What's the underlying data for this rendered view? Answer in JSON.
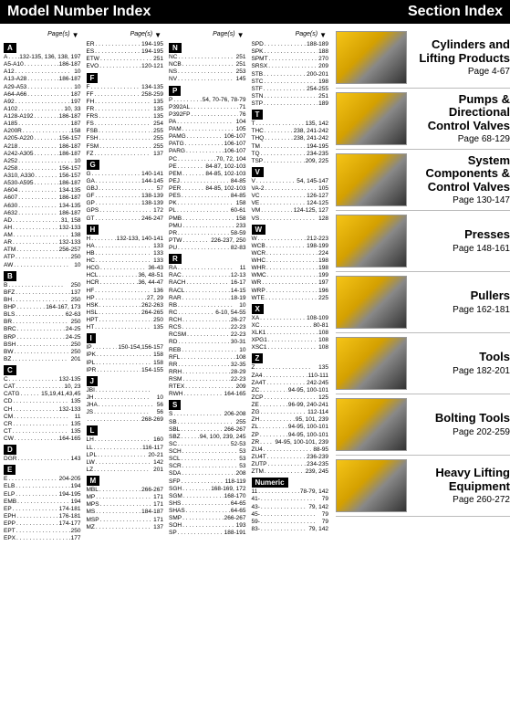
{
  "header": {
    "left": "Model Number Index",
    "right": "Section Index"
  },
  "pagesLabel": "Page(s)",
  "columns": [
    [
      {
        "letter": "A"
      },
      {
        "m": "A",
        "p": ".132-135, 136, 138, 197"
      },
      {
        "m": "A5-A10",
        "p": "186-187"
      },
      {
        "m": "A12",
        "p": "10"
      },
      {
        "m": "A13-A28",
        "p": "186-187"
      },
      {
        "m": "A29-A53",
        "p": "10"
      },
      {
        "m": "A64-A66",
        "p": "187"
      },
      {
        "m": "A92",
        "p": "197"
      },
      {
        "m": "A102",
        "p": "10, 33"
      },
      {
        "m": "A128-A192",
        "p": "186-187"
      },
      {
        "m": "A185",
        "p": "187"
      },
      {
        "m": "A200R",
        "p": "158"
      },
      {
        "m": "A205-A220",
        "p": "156-157"
      },
      {
        "m": "A218",
        "p": "186-187"
      },
      {
        "m": "A242-A305",
        "p": "186-187"
      },
      {
        "m": "A252",
        "p": "10"
      },
      {
        "m": "A258",
        "p": "156-157"
      },
      {
        "m": "A310, A330",
        "p": "156-157"
      },
      {
        "m": "A530-A595",
        "p": "186-187"
      },
      {
        "m": "A604",
        "p": "134-135"
      },
      {
        "m": "A607",
        "p": "186-187"
      },
      {
        "m": "A630",
        "p": "134-135"
      },
      {
        "m": "A632",
        "p": "186-187"
      },
      {
        "m": "AD",
        "p": "31, 158"
      },
      {
        "m": "AH",
        "p": "132-133"
      },
      {
        "m": "AM",
        "p": "138"
      },
      {
        "m": "AR",
        "p": "132-133"
      },
      {
        "m": "ATM",
        "p": "256-257"
      },
      {
        "m": "ATP",
        "p": "250"
      },
      {
        "m": "AW",
        "p": "10"
      },
      {
        "letter": "B"
      },
      {
        "m": "B",
        "p": "250"
      },
      {
        "m": "BFZ",
        "p": "137"
      },
      {
        "m": "BH",
        "p": "250"
      },
      {
        "m": "BHP",
        "p": "164-167, 173"
      },
      {
        "m": "BLS",
        "p": "62-63"
      },
      {
        "m": "BR",
        "p": "250"
      },
      {
        "m": "BRC",
        "p": "24-25"
      },
      {
        "m": "BRP",
        "p": "24-25"
      },
      {
        "m": "BSH",
        "p": "250"
      },
      {
        "m": "BW",
        "p": "250"
      },
      {
        "m": "BZ",
        "p": "201"
      },
      {
        "letter": "C"
      },
      {
        "m": "C",
        "p": "132-135"
      },
      {
        "m": "CAT",
        "p": "10, 23"
      },
      {
        "m": "CATG",
        "p": "15,19,41,43,45"
      },
      {
        "m": "CD",
        "p": "135"
      },
      {
        "m": "CH",
        "p": "132-133"
      },
      {
        "m": "CM",
        "p": "11"
      },
      {
        "m": "CR",
        "p": "135"
      },
      {
        "m": "CT",
        "p": "135"
      },
      {
        "m": "CW",
        "p": "164-165"
      },
      {
        "letter": "D"
      },
      {
        "m": "DGR",
        "p": "143"
      },
      {
        "letter": "E"
      },
      {
        "m": "E",
        "p": "204-205"
      },
      {
        "m": "ELB",
        "p": "194"
      },
      {
        "m": "ELP",
        "p": "194-195"
      },
      {
        "m": "EMB",
        "p": "194"
      },
      {
        "m": "EP",
        "p": "174-181"
      },
      {
        "m": "EPH",
        "p": "176-181"
      },
      {
        "m": "EPP",
        "p": "174-177"
      },
      {
        "m": "EPT",
        "p": "250"
      },
      {
        "m": "EPX",
        "p": "177"
      }
    ],
    [
      {
        "m": "ER",
        "p": "194-195"
      },
      {
        "m": "ES",
        "p": "194-195"
      },
      {
        "m": "ETW",
        "p": "251"
      },
      {
        "m": "EVO",
        "p": "120-121"
      },
      {
        "letter": "F"
      },
      {
        "m": "F",
        "p": "134-135"
      },
      {
        "m": "FF",
        "p": "258-259"
      },
      {
        "m": "FH",
        "p": "135"
      },
      {
        "m": "FR",
        "p": "135"
      },
      {
        "m": "FRS",
        "p": "135"
      },
      {
        "m": "FS",
        "p": "254"
      },
      {
        "m": "FSB",
        "p": "255"
      },
      {
        "m": "FSH",
        "p": "255"
      },
      {
        "m": "FSM",
        "p": "255"
      },
      {
        "m": "FZ",
        "p": "137"
      },
      {
        "letter": "G"
      },
      {
        "m": "G",
        "p": "140-141"
      },
      {
        "m": "GA",
        "p": "144-145"
      },
      {
        "m": "GBJ",
        "p": "57"
      },
      {
        "m": "GF",
        "p": "138-139"
      },
      {
        "m": "GP",
        "p": "138-139"
      },
      {
        "m": "GPS",
        "p": "172"
      },
      {
        "m": "GT",
        "p": "246-247"
      },
      {
        "letter": "H"
      },
      {
        "m": "H",
        "p": "132-133, 140-141"
      },
      {
        "m": "HA",
        "p": "133"
      },
      {
        "m": "HB",
        "p": "133"
      },
      {
        "m": "HC",
        "p": "133"
      },
      {
        "m": "HCG",
        "p": "36-43"
      },
      {
        "m": "HCL",
        "p": "36, 48-51"
      },
      {
        "m": "HCR",
        "p": "36, 44-47"
      },
      {
        "m": "HF",
        "p": "136"
      },
      {
        "m": "HP",
        "p": "27, 29"
      },
      {
        "m": "HSK",
        "p": "262-263"
      },
      {
        "m": "HSL",
        "p": "264-265"
      },
      {
        "m": "HPT",
        "p": "250"
      },
      {
        "m": "HT",
        "p": "135"
      },
      {
        "letter": "I"
      },
      {
        "m": "IP",
        "p": "150-154,156-157"
      },
      {
        "m": "IPK",
        "p": "158"
      },
      {
        "m": "IPL",
        "p": "158"
      },
      {
        "m": "IPR",
        "p": "154-155"
      },
      {
        "letter": "J"
      },
      {
        "m": "JBI",
        "p": ""
      },
      {
        "m": "JH",
        "p": "10"
      },
      {
        "m": "JHA",
        "p": "56"
      },
      {
        "m": "JS",
        "p": "56"
      },
      {
        "m": "",
        "p": "268-269"
      },
      {
        "letter": "L"
      },
      {
        "m": "LH",
        "p": "160"
      },
      {
        "m": "LL",
        "p": "116-117"
      },
      {
        "m": "LPL",
        "p": "20-21"
      },
      {
        "m": "LW",
        "p": "142"
      },
      {
        "m": "LZ",
        "p": "201"
      },
      {
        "letter": "M"
      },
      {
        "m": "MBL",
        "p": "266-267"
      },
      {
        "m": "MP",
        "p": "171"
      },
      {
        "m": "MPS",
        "p": "171"
      },
      {
        "m": "MS",
        "p": "184-187"
      },
      {
        "m": "MSP",
        "p": "171"
      },
      {
        "m": "MZ",
        "p": "137"
      }
    ],
    [
      {
        "letter": "N"
      },
      {
        "m": "NC",
        "p": "251"
      },
      {
        "m": "NCB",
        "p": "251"
      },
      {
        "m": "NS",
        "p": "253"
      },
      {
        "m": "NV",
        "p": "145"
      },
      {
        "letter": "P"
      },
      {
        "m": "P",
        "p": "54, 70-76, 78-79"
      },
      {
        "m": "P392AL",
        "p": "71"
      },
      {
        "m": "P392FP",
        "p": "76"
      },
      {
        "m": "PA",
        "p": "104"
      },
      {
        "m": "PAM",
        "p": "105"
      },
      {
        "m": "PAMG",
        "p": "106-107"
      },
      {
        "m": "PATG",
        "p": "106-107"
      },
      {
        "m": "PARG",
        "p": "106-107"
      },
      {
        "m": "PC",
        "p": "70, 72, 104"
      },
      {
        "m": "PE",
        "p": "84-87, 102-103"
      },
      {
        "m": "PEM",
        "p": "84-85, 102-103"
      },
      {
        "m": "PEJ",
        "p": "84-85"
      },
      {
        "m": "PER",
        "p": "84-85, 102-103"
      },
      {
        "m": "PES",
        "p": "84-85"
      },
      {
        "m": "PK",
        "p": "158"
      },
      {
        "m": "PL",
        "p": "60-61"
      },
      {
        "m": "PMB",
        "p": "158"
      },
      {
        "m": "PMU",
        "p": "233"
      },
      {
        "m": "PR",
        "p": "58-59"
      },
      {
        "m": "PTW",
        "p": "226-237, 250"
      },
      {
        "m": "PU",
        "p": "82-83"
      },
      {
        "letter": "R"
      },
      {
        "m": "RA",
        "p": "11"
      },
      {
        "m": "RAC",
        "p": "12-13"
      },
      {
        "m": "RACH",
        "p": "16-17"
      },
      {
        "m": "RACL",
        "p": "14-15"
      },
      {
        "m": "RAR",
        "p": "18-19"
      },
      {
        "m": "RB",
        "p": "10"
      },
      {
        "m": "RC",
        "p": "6-10, 54-55"
      },
      {
        "m": "RCH",
        "p": "26-27"
      },
      {
        "m": "RCS",
        "p": "22-23"
      },
      {
        "m": "RCSM",
        "p": "22-23"
      },
      {
        "m": "RD",
        "p": "30-31"
      },
      {
        "m": "REB",
        "p": "10"
      },
      {
        "m": "RFL",
        "p": "108"
      },
      {
        "m": "RR",
        "p": "32-35"
      },
      {
        "m": "RRH",
        "p": "28-29"
      },
      {
        "m": "RSM",
        "p": "22-23"
      },
      {
        "m": "RTEX",
        "p": "209"
      },
      {
        "m": "RWH",
        "p": "164-165"
      },
      {
        "letter": "S"
      },
      {
        "m": "S",
        "p": "206-208"
      },
      {
        "m": "SB",
        "p": "255"
      },
      {
        "m": "SBL",
        "p": "266-267"
      },
      {
        "m": "SBZ",
        "p": "94, 100, 239, 245"
      },
      {
        "m": "SC",
        "p": "52-53"
      },
      {
        "m": "SCH",
        "p": "53"
      },
      {
        "m": "SCL",
        "p": "53"
      },
      {
        "m": "SCR",
        "p": "53"
      },
      {
        "m": "SDA",
        "p": "208"
      },
      {
        "m": "SFP",
        "p": "118-119"
      },
      {
        "m": "SGH",
        "p": "168-169, 172"
      },
      {
        "m": "SGM",
        "p": "168-170"
      },
      {
        "m": "SHS",
        "p": "64-65"
      },
      {
        "m": "SHAS",
        "p": "64-65"
      },
      {
        "m": "SMP",
        "p": "266-267"
      },
      {
        "m": "SOH",
        "p": "193"
      },
      {
        "m": "SP",
        "p": "188-191"
      }
    ],
    [
      {
        "m": "SPD",
        "p": "188-189"
      },
      {
        "m": "SPK",
        "p": "188"
      },
      {
        "m": "SPMT",
        "p": "270"
      },
      {
        "m": "SRSX",
        "p": "209"
      },
      {
        "m": "STB",
        "p": "200-201"
      },
      {
        "m": "STC",
        "p": "198"
      },
      {
        "m": "STF",
        "p": "254-255"
      },
      {
        "m": "STN",
        "p": "251"
      },
      {
        "m": "STP",
        "p": "189"
      },
      {
        "letter": "T"
      },
      {
        "m": "T",
        "p": "135, 142"
      },
      {
        "m": "THC",
        "p": "238, 241-242"
      },
      {
        "m": "THQ",
        "p": "238, 241-242"
      },
      {
        "m": "TM",
        "p": "194-195"
      },
      {
        "m": "TQ",
        "p": "234-235"
      },
      {
        "m": "TSP",
        "p": "209, 225"
      },
      {
        "letter": "V"
      },
      {
        "m": "V",
        "p": "54, 145-147"
      },
      {
        "m": "VA-2",
        "p": "105"
      },
      {
        "m": "VC",
        "p": "126-127"
      },
      {
        "m": "VE",
        "p": "124-125"
      },
      {
        "m": "VM",
        "p": "124-125, 127"
      },
      {
        "m": "VS",
        "p": "128"
      },
      {
        "letter": "W"
      },
      {
        "m": "W",
        "p": "212-223"
      },
      {
        "m": "WCB",
        "p": "198-199"
      },
      {
        "m": "WCR",
        "p": "224"
      },
      {
        "m": "WHC",
        "p": "198"
      },
      {
        "m": "WHR",
        "p": "198"
      },
      {
        "m": "WMC",
        "p": "199"
      },
      {
        "m": "WR",
        "p": "197"
      },
      {
        "m": "WRP",
        "p": "196"
      },
      {
        "m": "WTE",
        "p": "225"
      },
      {
        "letter": "X"
      },
      {
        "m": "XA",
        "p": "108-109"
      },
      {
        "m": "XC",
        "p": "80-81"
      },
      {
        "m": "XLK1",
        "p": "108"
      },
      {
        "m": "XPG1",
        "p": "108"
      },
      {
        "m": "XSC1",
        "p": "108"
      },
      {
        "letter": "Z"
      },
      {
        "m": "Z",
        "p": "135"
      },
      {
        "m": "ZA4",
        "p": "110-111"
      },
      {
        "m": "ZA4T",
        "p": "242-245"
      },
      {
        "m": "ZC",
        "p": "94-95, 100-101"
      },
      {
        "m": "ZCP",
        "p": "125"
      },
      {
        "m": "ZE",
        "p": "96-99, 240-241"
      },
      {
        "m": "ZG",
        "p": "112-114"
      },
      {
        "m": "ZH",
        "p": "95, 101, 239"
      },
      {
        "m": "ZL",
        "p": "94-95, 100-101"
      },
      {
        "m": "ZP",
        "p": "94-95, 100-101"
      },
      {
        "m": "ZR",
        "p": "94-95, 100-101, 239"
      },
      {
        "m": "ZU4",
        "p": "88-95"
      },
      {
        "m": "ZU4T",
        "p": "236-239"
      },
      {
        "m": "ZUTP",
        "p": "234-235"
      },
      {
        "m": "ZTM",
        "p": "239, 245"
      },
      {
        "letter": "Numeric"
      },
      {
        "m": "11",
        "p": "78-79, 142"
      },
      {
        "m": "41-",
        "p": "79"
      },
      {
        "m": "43-",
        "p": "79, 142"
      },
      {
        "m": "45-",
        "p": "79"
      },
      {
        "m": "59-",
        "p": "79"
      },
      {
        "m": "83-",
        "p": "79, 142"
      }
    ]
  ],
  "categories": [
    {
      "title": "Cylinders and Lifting Products",
      "page": "Page 4-67"
    },
    {
      "title": "Pumps & Directional Control Valves",
      "page": "Page 68-129"
    },
    {
      "title": "System Components & Control Valves",
      "page": "Page 130-147"
    },
    {
      "title": "Presses",
      "page": "Page 148-161"
    },
    {
      "title": "Pullers",
      "page": "Page 162-181"
    },
    {
      "title": "Tools",
      "page": "Page 182-201"
    },
    {
      "title": "Bolting Tools",
      "page": "Page 202-259"
    },
    {
      "title": "Heavy Lifting Equipment",
      "page": "Page 260-272"
    }
  ]
}
